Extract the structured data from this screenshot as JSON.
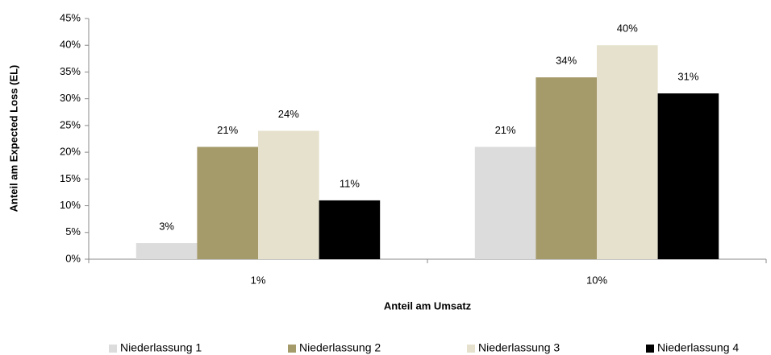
{
  "chart_data": {
    "type": "bar",
    "x_label": "Anteil am Umsatz",
    "y_label": "Anteil am Expected Loss (EL)",
    "categories": [
      "1%",
      "10%"
    ],
    "series": [
      {
        "name": "Niederlassung 1",
        "color": "#dcdcdc",
        "values": [
          3,
          21
        ],
        "value_labels": [
          "3%",
          "21%"
        ]
      },
      {
        "name": "Niederlassung 2",
        "color": "#a59a6a",
        "values": [
          21,
          34
        ],
        "value_labels": [
          "21%",
          "34%"
        ]
      },
      {
        "name": "Niederlassung 3",
        "color": "#e5e1cc",
        "values": [
          24,
          40
        ],
        "value_labels": [
          "24%",
          "40%"
        ]
      },
      {
        "name": "Niederlassung 4",
        "color": "#000000",
        "values": [
          11,
          31
        ],
        "value_labels": [
          "11%",
          "31%"
        ]
      }
    ],
    "ylim": [
      0,
      45
    ],
    "yticks": [
      {
        "value": 0,
        "label": "0%"
      },
      {
        "value": 5,
        "label": "5%"
      },
      {
        "value": 10,
        "label": "10%"
      },
      {
        "value": 15,
        "label": "15%"
      },
      {
        "value": 20,
        "label": "20%"
      },
      {
        "value": 25,
        "label": "25%"
      },
      {
        "value": 30,
        "label": "30%"
      },
      {
        "value": 35,
        "label": "35%"
      },
      {
        "value": 40,
        "label": "40%"
      },
      {
        "value": 45,
        "label": "45%"
      }
    ],
    "grid": false,
    "legend": "bottom"
  }
}
